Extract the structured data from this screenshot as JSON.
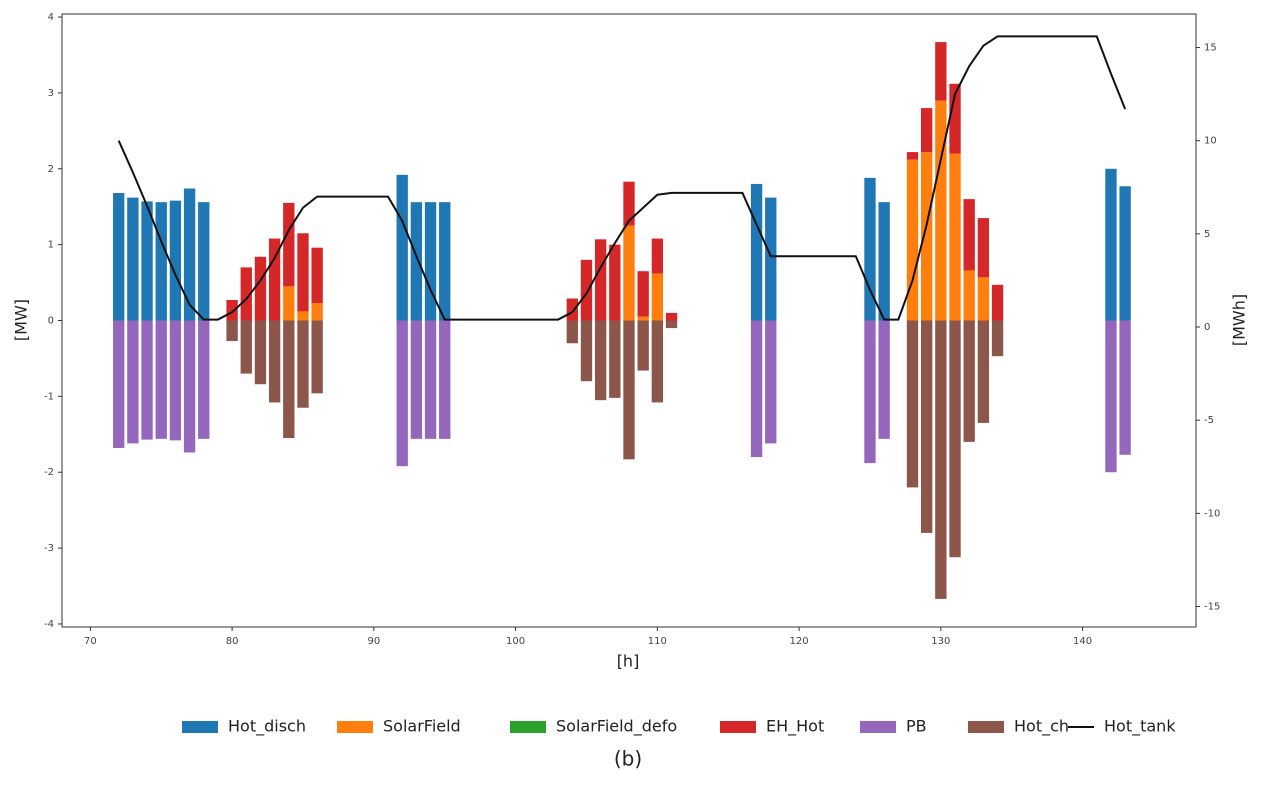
{
  "chart_data": {
    "type": "bar",
    "caption": "(b)",
    "x_label": "[h]",
    "y_label": "[MW]",
    "y2_label": "[MWh]",
    "xlim": [
      68,
      148
    ],
    "xticks": [
      70,
      80,
      90,
      100,
      110,
      120,
      130,
      140
    ],
    "ylim": [
      -4.04,
      4.04
    ],
    "yticks": [
      -4,
      -3,
      -2,
      -1,
      0,
      1,
      2,
      3,
      4
    ],
    "y2lim": [
      -16.1,
      16.8
    ],
    "y2ticks": [
      -15,
      -10,
      -5,
      0,
      5,
      10,
      15
    ],
    "x": [
      72,
      73,
      74,
      75,
      76,
      77,
      78,
      79,
      80,
      81,
      82,
      83,
      84,
      85,
      86,
      87,
      88,
      89,
      90,
      91,
      92,
      93,
      94,
      95,
      96,
      97,
      98,
      99,
      100,
      101,
      102,
      103,
      104,
      105,
      106,
      107,
      108,
      109,
      110,
      111,
      112,
      113,
      114,
      115,
      116,
      117,
      118,
      119,
      120,
      121,
      122,
      123,
      124,
      125,
      126,
      127,
      128,
      129,
      130,
      131,
      132,
      133,
      134,
      135,
      136,
      137,
      138,
      139,
      140,
      141,
      142,
      143
    ],
    "series": [
      {
        "name": "Hot_disch",
        "color": "#1f77b4",
        "values": [
          1.68,
          1.62,
          1.57,
          1.56,
          1.58,
          1.74,
          1.56,
          null,
          null,
          null,
          null,
          null,
          null,
          null,
          null,
          null,
          null,
          null,
          null,
          null,
          1.92,
          1.56,
          1.56,
          1.56,
          null,
          null,
          null,
          null,
          null,
          null,
          null,
          null,
          null,
          null,
          null,
          null,
          null,
          null,
          null,
          null,
          null,
          null,
          null,
          null,
          null,
          1.8,
          1.62,
          null,
          null,
          null,
          null,
          null,
          null,
          1.88,
          1.56,
          null,
          null,
          null,
          null,
          null,
          null,
          null,
          null,
          null,
          null,
          null,
          null,
          null,
          null,
          null,
          2.0,
          1.77
        ]
      },
      {
        "name": "SolarField",
        "color": "#ff7f0e",
        "values": [
          null,
          null,
          null,
          null,
          null,
          null,
          null,
          null,
          null,
          null,
          null,
          null,
          0.45,
          0.12,
          0.23,
          null,
          null,
          null,
          null,
          null,
          null,
          null,
          null,
          null,
          null,
          null,
          null,
          null,
          null,
          null,
          null,
          null,
          null,
          null,
          null,
          null,
          1.25,
          0.05,
          0.62,
          null,
          null,
          null,
          null,
          null,
          null,
          null,
          null,
          null,
          null,
          null,
          null,
          null,
          null,
          null,
          null,
          null,
          2.12,
          2.22,
          2.9,
          2.2,
          0.66,
          0.57,
          null,
          null,
          null,
          null,
          null,
          null,
          null,
          null,
          null,
          null
        ]
      },
      {
        "name": "SolarField_defo",
        "color": "#2ca02c",
        "values": [
          null,
          null,
          null,
          null,
          null,
          null,
          null,
          null,
          null,
          null,
          null,
          null,
          null,
          null,
          null,
          null,
          null,
          null,
          null,
          null,
          null,
          null,
          null,
          null,
          null,
          null,
          null,
          null,
          null,
          null,
          null,
          null,
          null,
          null,
          null,
          null,
          null,
          null,
          null,
          null,
          null,
          null,
          null,
          null,
          null,
          null,
          null,
          null,
          null,
          null,
          null,
          null,
          null,
          null,
          null,
          null,
          null,
          null,
          null,
          null,
          null,
          null,
          null,
          null,
          null,
          null,
          null,
          null,
          null,
          null,
          null,
          null
        ]
      },
      {
        "name": "EH_Hot",
        "color": "#d62728",
        "values": [
          null,
          null,
          null,
          null,
          null,
          null,
          null,
          null,
          0.27,
          0.7,
          0.84,
          1.08,
          1.1,
          1.03,
          0.73,
          null,
          null,
          null,
          null,
          null,
          null,
          null,
          null,
          null,
          null,
          null,
          null,
          null,
          null,
          null,
          null,
          null,
          0.29,
          0.8,
          1.07,
          1.0,
          0.58,
          0.6,
          0.46,
          0.1,
          null,
          null,
          null,
          null,
          null,
          null,
          null,
          null,
          null,
          null,
          null,
          null,
          null,
          null,
          null,
          null,
          0.1,
          0.58,
          0.77,
          0.92,
          0.94,
          0.78,
          0.47,
          null,
          null,
          null,
          null,
          null,
          null,
          null,
          null,
          null
        ]
      },
      {
        "name": "PB",
        "color": "#9467bd",
        "values": [
          -1.68,
          -1.62,
          -1.57,
          -1.56,
          -1.58,
          -1.74,
          -1.56,
          null,
          null,
          null,
          null,
          null,
          null,
          null,
          null,
          null,
          null,
          null,
          null,
          null,
          -1.92,
          -1.56,
          -1.56,
          -1.56,
          null,
          null,
          null,
          null,
          null,
          null,
          null,
          null,
          null,
          null,
          null,
          null,
          null,
          null,
          null,
          null,
          null,
          null,
          null,
          null,
          null,
          -1.8,
          -1.62,
          null,
          null,
          null,
          null,
          null,
          null,
          -1.88,
          -1.56,
          null,
          null,
          null,
          null,
          null,
          null,
          null,
          null,
          null,
          null,
          null,
          null,
          null,
          null,
          null,
          -2.0,
          -1.77
        ]
      },
      {
        "name": "Hot_ch",
        "color": "#8c564b",
        "values": [
          null,
          null,
          null,
          null,
          null,
          null,
          null,
          null,
          -0.27,
          -0.7,
          -0.84,
          -1.08,
          -1.55,
          -1.15,
          -0.96,
          null,
          null,
          null,
          null,
          null,
          null,
          null,
          null,
          null,
          null,
          null,
          null,
          null,
          null,
          null,
          null,
          null,
          -0.3,
          -0.8,
          -1.05,
          -1.02,
          -1.83,
          -0.66,
          -1.08,
          -0.1,
          null,
          null,
          null,
          null,
          null,
          null,
          null,
          null,
          null,
          null,
          null,
          null,
          null,
          null,
          null,
          null,
          -2.2,
          -2.8,
          -3.67,
          -3.12,
          -1.6,
          -1.35,
          -0.47,
          null,
          null,
          null,
          null,
          null,
          null,
          null,
          null,
          null
        ]
      },
      {
        "name": "Hot_tank",
        "color": "#111111",
        "type": "line",
        "axis": "y2",
        "values": [
          10,
          8.3,
          6.5,
          4.6,
          2.8,
          1.2,
          0.4,
          0.4,
          0.8,
          1.5,
          2.5,
          3.7,
          5.2,
          6.4,
          7.0,
          7.0,
          7.0,
          7.0,
          7.0,
          7.0,
          5.7,
          3.8,
          2.0,
          0.4,
          0.4,
          0.4,
          0.4,
          0.4,
          0.4,
          0.4,
          0.4,
          0.4,
          0.8,
          1.8,
          3.2,
          4.5,
          5.7,
          6.4,
          7.1,
          7.2,
          7.2,
          7.2,
          7.2,
          7.2,
          7.2,
          5.5,
          3.8,
          3.8,
          3.8,
          3.8,
          3.8,
          3.8,
          3.8,
          2.0,
          0.4,
          0.4,
          2.5,
          5.5,
          9.0,
          12.5,
          14.0,
          15.1,
          15.6,
          15.6,
          15.6,
          15.6,
          15.6,
          15.6,
          15.6,
          15.6,
          13.6,
          11.7
        ]
      }
    ]
  }
}
